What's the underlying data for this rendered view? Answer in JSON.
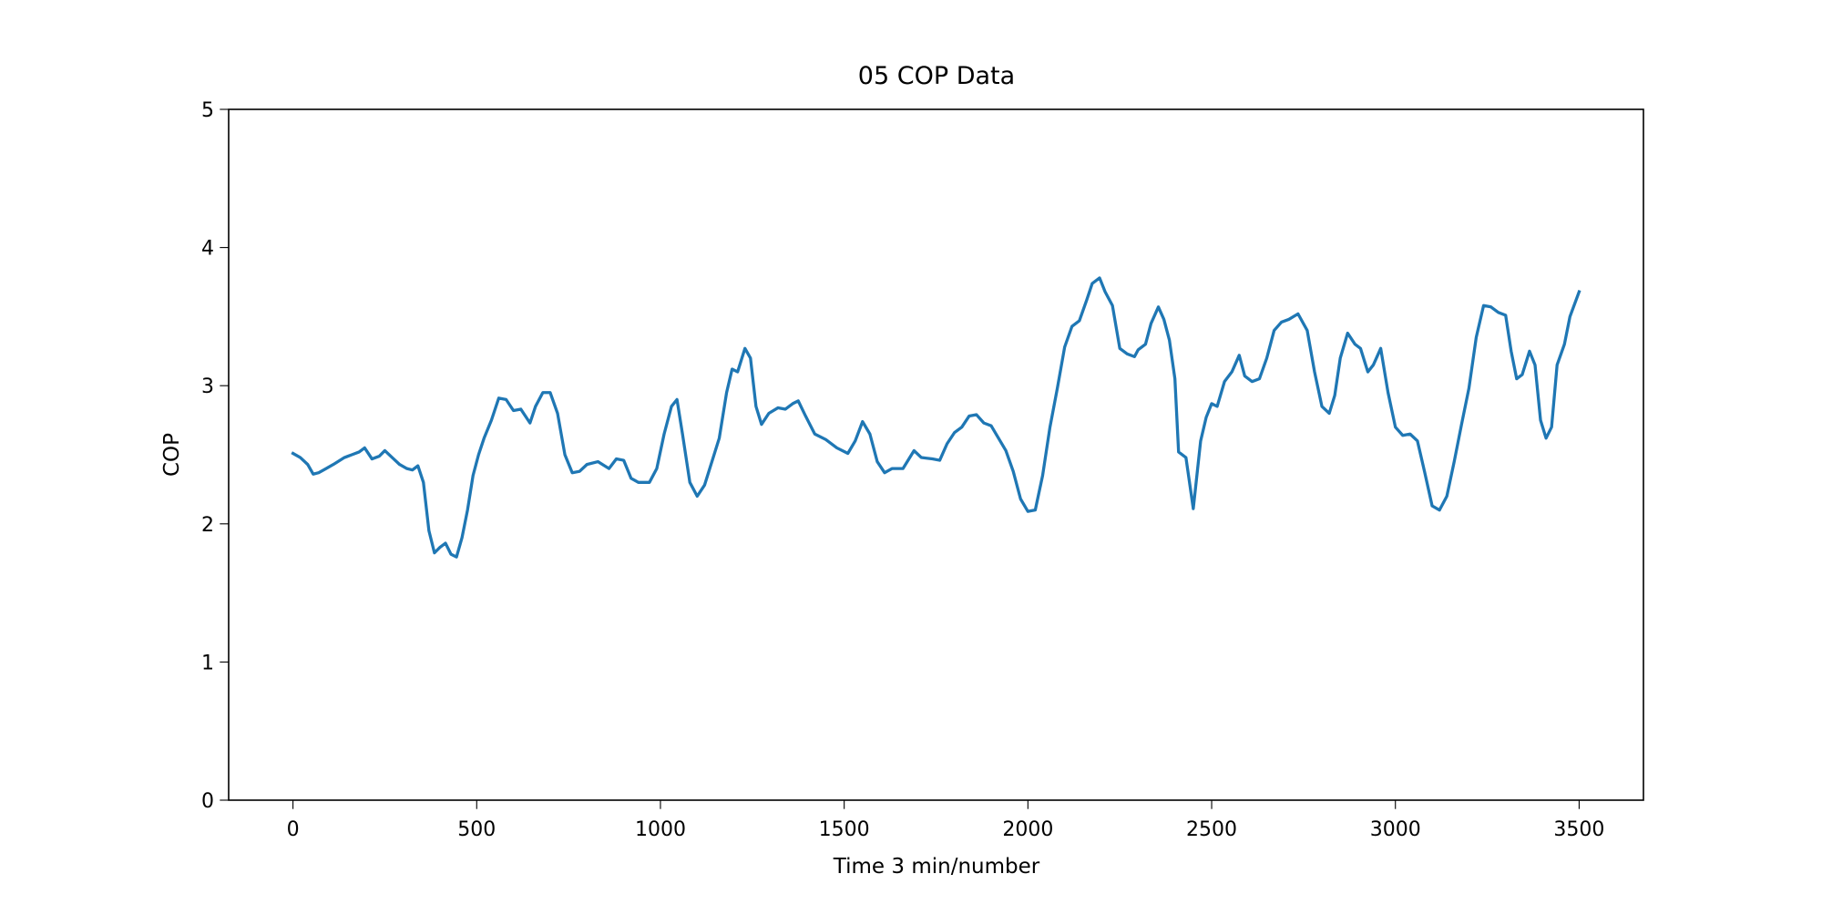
{
  "chart_data": {
    "type": "line",
    "title": "05 COP Data",
    "x_label": "Time 3 min/number",
    "y_label": "COP",
    "xlim": [
      -175,
      3675
    ],
    "ylim": [
      0,
      5
    ],
    "xticks": [
      0,
      500,
      1000,
      1500,
      2000,
      2500,
      3000,
      3500
    ],
    "yticks": [
      0,
      1,
      2,
      3,
      4,
      5
    ],
    "grid": false,
    "series": [
      {
        "color": "#1f77b4",
        "x": [
          0,
          20,
          40,
          55,
          70,
          90,
          110,
          140,
          160,
          180,
          195,
          215,
          235,
          250,
          270,
          290,
          310,
          325,
          340,
          355,
          370,
          385,
          400,
          415,
          430,
          445,
          460,
          475,
          490,
          505,
          520,
          540,
          560,
          580,
          600,
          620,
          645,
          660,
          680,
          700,
          720,
          740,
          760,
          780,
          800,
          830,
          860,
          880,
          900,
          920,
          940,
          970,
          990,
          1010,
          1030,
          1045,
          1060,
          1080,
          1100,
          1120,
          1140,
          1160,
          1180,
          1195,
          1210,
          1230,
          1245,
          1260,
          1275,
          1295,
          1320,
          1340,
          1360,
          1375,
          1395,
          1420,
          1450,
          1480,
          1510,
          1530,
          1550,
          1570,
          1590,
          1610,
          1630,
          1660,
          1690,
          1710,
          1740,
          1760,
          1780,
          1800,
          1820,
          1840,
          1860,
          1880,
          1900,
          1920,
          1940,
          1960,
          1980,
          2000,
          2020,
          2040,
          2060,
          2080,
          2100,
          2120,
          2140,
          2160,
          2175,
          2195,
          2210,
          2230,
          2250,
          2270,
          2290,
          2300,
          2320,
          2335,
          2355,
          2370,
          2385,
          2400,
          2410,
          2430,
          2450,
          2470,
          2485,
          2500,
          2515,
          2535,
          2555,
          2575,
          2590,
          2610,
          2630,
          2650,
          2670,
          2690,
          2710,
          2735,
          2760,
          2780,
          2800,
          2820,
          2835,
          2850,
          2870,
          2890,
          2905,
          2925,
          2940,
          2960,
          2980,
          3000,
          3020,
          3040,
          3060,
          3080,
          3100,
          3120,
          3140,
          3160,
          3180,
          3200,
          3220,
          3240,
          3260,
          3280,
          3300,
          3315,
          3330,
          3345,
          3365,
          3380,
          3395,
          3410,
          3425,
          3440,
          3460,
          3475,
          3500
        ],
        "values": [
          2.51,
          2.48,
          2.43,
          2.36,
          2.37,
          2.4,
          2.43,
          2.48,
          2.5,
          2.52,
          2.55,
          2.47,
          2.49,
          2.53,
          2.48,
          2.43,
          2.4,
          2.39,
          2.42,
          2.3,
          1.95,
          1.79,
          1.83,
          1.86,
          1.78,
          1.76,
          1.9,
          2.1,
          2.35,
          2.5,
          2.62,
          2.75,
          2.91,
          2.9,
          2.82,
          2.83,
          2.73,
          2.85,
          2.95,
          2.95,
          2.8,
          2.5,
          2.37,
          2.38,
          2.43,
          2.45,
          2.4,
          2.47,
          2.46,
          2.33,
          2.3,
          2.3,
          2.4,
          2.65,
          2.85,
          2.9,
          2.65,
          2.3,
          2.2,
          2.28,
          2.45,
          2.62,
          2.95,
          3.12,
          3.1,
          3.27,
          3.2,
          2.85,
          2.72,
          2.8,
          2.84,
          2.83,
          2.87,
          2.89,
          2.78,
          2.65,
          2.61,
          2.55,
          2.51,
          2.6,
          2.74,
          2.65,
          2.45,
          2.37,
          2.4,
          2.4,
          2.53,
          2.48,
          2.47,
          2.46,
          2.58,
          2.66,
          2.7,
          2.78,
          2.79,
          2.73,
          2.71,
          2.62,
          2.53,
          2.38,
          2.18,
          2.09,
          2.1,
          2.35,
          2.7,
          2.98,
          3.28,
          3.43,
          3.47,
          3.62,
          3.74,
          3.78,
          3.68,
          3.58,
          3.27,
          3.23,
          3.21,
          3.26,
          3.3,
          3.45,
          3.57,
          3.48,
          3.33,
          3.05,
          2.52,
          2.48,
          2.11,
          2.6,
          2.77,
          2.87,
          2.85,
          3.03,
          3.1,
          3.22,
          3.07,
          3.03,
          3.05,
          3.2,
          3.4,
          3.46,
          3.48,
          3.52,
          3.4,
          3.1,
          2.85,
          2.8,
          2.93,
          3.2,
          3.38,
          3.3,
          3.27,
          3.1,
          3.15,
          3.27,
          2.95,
          2.7,
          2.64,
          2.65,
          2.6,
          2.37,
          2.13,
          2.1,
          2.2,
          2.45,
          2.72,
          2.98,
          3.35,
          3.58,
          3.57,
          3.53,
          3.51,
          3.25,
          3.05,
          3.08,
          3.25,
          3.15,
          2.75,
          2.62,
          2.7,
          3.15,
          3.3,
          3.5,
          3.68
        ]
      }
    ]
  }
}
